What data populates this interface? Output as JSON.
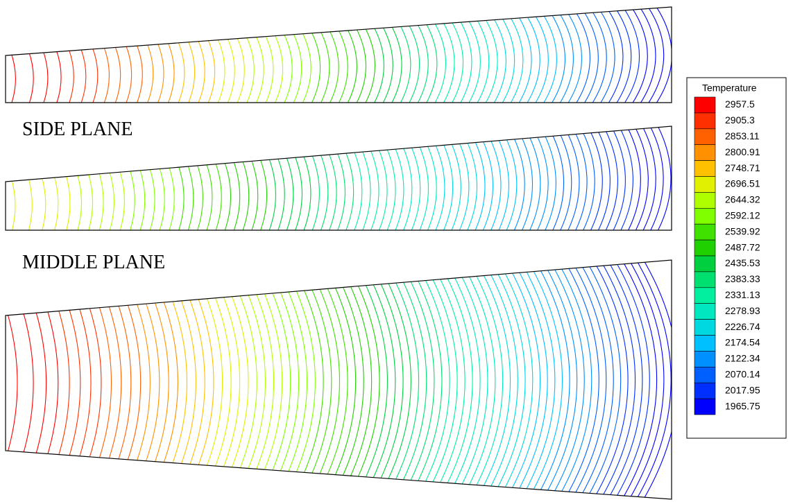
{
  "panels": [
    {
      "label": null
    },
    {
      "label": "SIDE PLANE"
    },
    {
      "label": "MIDDLE PLANE"
    }
  ],
  "legend": {
    "title": "Temperature",
    "levels": [
      {
        "label": "2957.5",
        "color": "#ff0000"
      },
      {
        "label": "2905.3",
        "color": "#ff3000"
      },
      {
        "label": "2853.11",
        "color": "#ff6000"
      },
      {
        "label": "2800.91",
        "color": "#ff9000"
      },
      {
        "label": "2748.71",
        "color": "#ffc000"
      },
      {
        "label": "2696.51",
        "color": "#e0f000"
      },
      {
        "label": "2644.32",
        "color": "#b0ff00"
      },
      {
        "label": "2592.12",
        "color": "#80ff00"
      },
      {
        "label": "2539.92",
        "color": "#40e000"
      },
      {
        "label": "2487.72",
        "color": "#20d000"
      },
      {
        "label": "2435.53",
        "color": "#00d040"
      },
      {
        "label": "2383.33",
        "color": "#00e070"
      },
      {
        "label": "2331.13",
        "color": "#00f0a0"
      },
      {
        "label": "2278.93",
        "color": "#00e8c0"
      },
      {
        "label": "2226.74",
        "color": "#00d8e0"
      },
      {
        "label": "2174.54",
        "color": "#00c0ff"
      },
      {
        "label": "2122.34",
        "color": "#0090ff"
      },
      {
        "label": "2070.14",
        "color": "#0060ff"
      },
      {
        "label": "2017.95",
        "color": "#0030ff"
      },
      {
        "label": "1965.75",
        "color": "#0000ff"
      }
    ]
  }
}
